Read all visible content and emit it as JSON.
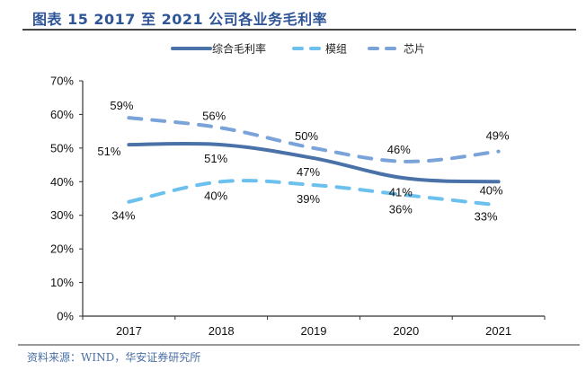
{
  "header": {
    "title": "图表 15 2017 至 2021 公司各业务毛利率"
  },
  "footer": {
    "source": "资料来源：WIND，华安证券研究所"
  },
  "chart_data": {
    "type": "line",
    "title": "图表 15 2017 至 2021 公司各业务毛利率",
    "xlabel": "",
    "ylabel": "",
    "categories": [
      "2017",
      "2018",
      "2019",
      "2020",
      "2021"
    ],
    "ylim": [
      0,
      70
    ],
    "yticks": [
      0,
      10,
      20,
      30,
      40,
      50,
      60,
      70
    ],
    "ytick_labels": [
      "0%",
      "10%",
      "20%",
      "30%",
      "40%",
      "50%",
      "60%",
      "70%"
    ],
    "grid": false,
    "legend_position": "top-center",
    "smooth": true,
    "series": [
      {
        "name": "综合毛利率",
        "values": [
          51,
          51,
          47,
          41,
          40
        ],
        "labels": [
          "51%",
          "51%",
          "47%",
          "41%",
          "40%"
        ],
        "label_positions": [
          "left",
          "below",
          "below",
          "below",
          "below"
        ],
        "color": "#4a72a8",
        "style": "solid"
      },
      {
        "name": "模组",
        "values": [
          34,
          40,
          39,
          36,
          33
        ],
        "labels": [
          "34%",
          "40%",
          "39%",
          "36%",
          "33%"
        ],
        "label_positions": [
          "below",
          "below",
          "below",
          "below",
          "below"
        ],
        "color": "#6cc0ee",
        "style": "dashed"
      },
      {
        "name": "芯片",
        "values": [
          59,
          56,
          50,
          46,
          49
        ],
        "labels": [
          "59%",
          "56%",
          "50%",
          "46%",
          "49%"
        ],
        "label_positions": [
          "above",
          "above",
          "above",
          "above",
          "above"
        ],
        "color": "#7aa3da",
        "style": "dashed"
      }
    ]
  }
}
